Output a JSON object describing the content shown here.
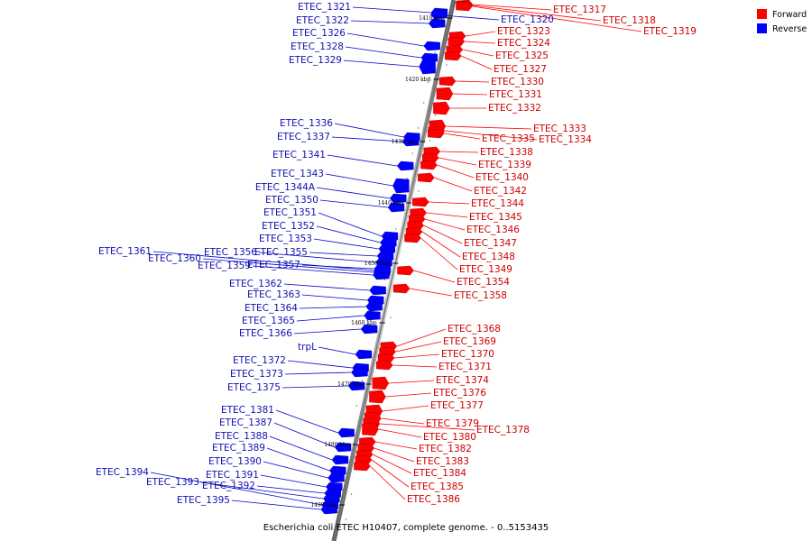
{
  "legend": {
    "forward_label": "Forward",
    "reverse_label": "Reverse",
    "forward_color": "#ff0000",
    "reverse_color": "#0000ff"
  },
  "caption": "Escherichia coli ETEC H10407, complete genome. - 0..5153435",
  "scale_labels": [
    "1410 kbp",
    "1420 kbp",
    "1430 kbp",
    "1440 kbp",
    "1450 kbp",
    "1460 kbp",
    "1470 kbp",
    "1480 kbp",
    "1490 kbp"
  ],
  "forward_genes": [
    "ETEC_1317",
    "ETEC_1318",
    "ETEC_1319",
    "ETEC_1323",
    "ETEC_1324",
    "ETEC_1325",
    "ETEC_1327",
    "ETEC_1330",
    "ETEC_1331",
    "ETEC_1332",
    "ETEC_1333",
    "ETEC_1334",
    "ETEC_1335",
    "ETEC_1338",
    "ETEC_1339",
    "ETEC_1340",
    "ETEC_1342",
    "ETEC_1344",
    "ETEC_1345",
    "ETEC_1346",
    "ETEC_1347",
    "ETEC_1348",
    "ETEC_1349",
    "ETEC_1354",
    "ETEC_1358",
    "ETEC_1368",
    "ETEC_1369",
    "ETEC_1370",
    "ETEC_1371",
    "ETEC_1374",
    "ETEC_1376",
    "ETEC_1377",
    "ETEC_1378",
    "ETEC_1379",
    "ETEC_1380",
    "ETEC_1382",
    "ETEC_1383",
    "ETEC_1384",
    "ETEC_1385",
    "ETEC_1386"
  ],
  "reverse_genes": [
    "ETEC_1321",
    "ETEC_1322",
    "ETEC_1320",
    "ETEC_1326",
    "ETEC_1328",
    "ETEC_1329",
    "ETEC_1336",
    "ETEC_1337",
    "ETEC_1341",
    "ETEC_1343",
    "ETEC_1344A",
    "ETEC_1350",
    "ETEC_1351",
    "ETEC_1352",
    "ETEC_1353",
    "ETEC_1355",
    "ETEC_1356",
    "ETEC_1361",
    "ETEC_1360",
    "ETEC_1359",
    "ETEC_1357",
    "ETEC_1362",
    "ETEC_1363",
    "ETEC_1364",
    "ETEC_1365",
    "ETEC_1366",
    "trpL",
    "ETEC_1372",
    "ETEC_1373",
    "ETEC_1375",
    "ETEC_1381",
    "ETEC_1387",
    "ETEC_1388",
    "ETEC_1389",
    "ETEC_1390",
    "ETEC_1391",
    "ETEC_1392",
    "ETEC_1393",
    "ETEC_1394",
    "ETEC_1395"
  ]
}
